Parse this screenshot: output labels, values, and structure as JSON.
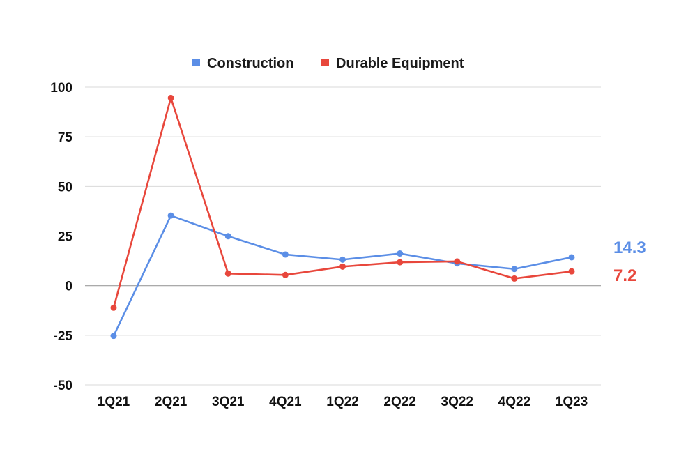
{
  "chart_data": {
    "type": "line",
    "categories": [
      "1Q21",
      "2Q21",
      "3Q21",
      "4Q21",
      "1Q22",
      "2Q22",
      "3Q22",
      "4Q22",
      "1Q23"
    ],
    "series": [
      {
        "name": "Construction",
        "color": "#5b8ee6",
        "values": [
          -25.3,
          35.3,
          24.9,
          15.7,
          13.1,
          16.2,
          11.2,
          8.4,
          14.3
        ],
        "end_label": "14.3"
      },
      {
        "name": "Durable Equipment",
        "color": "#e8473c",
        "values": [
          -11.1,
          94.6,
          6.1,
          5.4,
          9.6,
          11.8,
          12.2,
          3.6,
          7.2
        ],
        "end_label": "7.2"
      }
    ],
    "ylim": [
      -50,
      100
    ],
    "yticks": [
      "100",
      "75",
      "50",
      "25",
      "0",
      "-25",
      "-50"
    ],
    "ytick_values": [
      100,
      75,
      50,
      25,
      0,
      -25,
      -50
    ],
    "grid": true,
    "legend_position": "top"
  }
}
